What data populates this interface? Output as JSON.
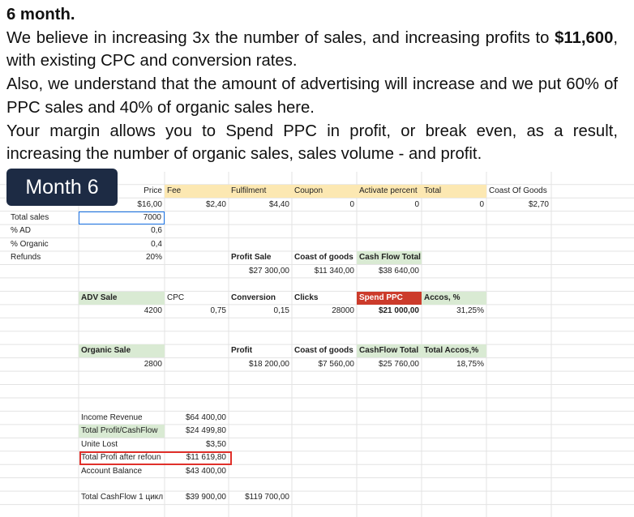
{
  "heading": "6 month.",
  "paragraphs": [
    [
      "We believe in increasing 3x the number of sales, and increasing profits to ",
      "$11,600",
      ", with existing CPC and conversion rates."
    ],
    [
      "Also, we understand that the amount of advertising will increase and we put 60% of PPC sales and 40% of organic sales here."
    ],
    [
      "Your margin allows you to Spend PPC in profit, or break even, as a result, increasing the number of organic sales, sales volume - and profit."
    ]
  ],
  "badge": "Month 6",
  "sheet": {
    "cells": [
      "Price",
      "Fee",
      "Fulfilment",
      "Coupon",
      "Activate percent",
      "Total",
      "Coast Of Goods",
      "$16,00",
      "$2,40",
      "$4,40",
      "0",
      "0",
      "0",
      "$2,70",
      "Total sales",
      "7000",
      "% AD",
      "0,6",
      "% Organic",
      "0,4",
      "Refunds",
      "20%",
      "Profit Sale",
      "Coast of goods",
      "Cash Flow Total",
      "$27 300,00",
      "$11 340,00",
      "$38 640,00",
      "ADV Sale",
      "CPC",
      "Conversion",
      "Clicks",
      "Spend PPC",
      "Accos, %",
      "4200",
      "0,75",
      "0,15",
      "28000",
      "$21 000,00",
      "31,25%",
      "Organic Sale",
      "Profit",
      "Coast of goods",
      "CashFlow Total",
      "Total Accos,%",
      "2800",
      "$18 200,00",
      "$7 560,00",
      "$25 760,00",
      "18,75%",
      "Income Revenue",
      "$64 400,00",
      "Total Profit/CashFlow",
      "$24 499,80",
      "Unite Lost",
      "$3,50",
      "Total Profi after refoun",
      "$11 619,80",
      "Account Balance",
      "$43 400,00",
      "Total CashFlow 1 цикл",
      "$39 900,00",
      "$119 700,00"
    ]
  }
}
